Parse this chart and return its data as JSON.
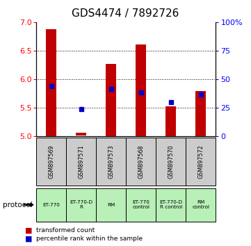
{
  "title": "GDS4474 / 7892726",
  "samples": [
    "GSM897569",
    "GSM897571",
    "GSM897573",
    "GSM897568",
    "GSM897570",
    "GSM897572"
  ],
  "protocols": [
    "ET-770",
    "ET-770-D\nR",
    "RM",
    "ET-770\ncontrol",
    "ET-770-D\nR control",
    "RM\ncontrol"
  ],
  "bar_bottoms": [
    5.0,
    5.02,
    5.0,
    5.0,
    5.0,
    5.0
  ],
  "bar_tops": [
    6.88,
    5.07,
    6.27,
    6.61,
    5.53,
    5.8
  ],
  "blue_dots": [
    5.88,
    5.48,
    5.83,
    5.77,
    5.6,
    5.73
  ],
  "ylim_left": [
    5.0,
    7.0
  ],
  "ylim_right": [
    0,
    100
  ],
  "yticks_left": [
    5.0,
    5.5,
    6.0,
    6.5,
    7.0
  ],
  "yticks_right": [
    0,
    25,
    50,
    75,
    100
  ],
  "bar_color": "#c00000",
  "dot_color": "#0000cc",
  "protocol_bg": "#b8f0b8",
  "sample_bg": "#cccccc",
  "legend_dot_label": "percentile rank within the sample",
  "legend_bar_label": "transformed count",
  "title_fontsize": 11,
  "tick_fontsize": 8,
  "bar_width": 0.35
}
